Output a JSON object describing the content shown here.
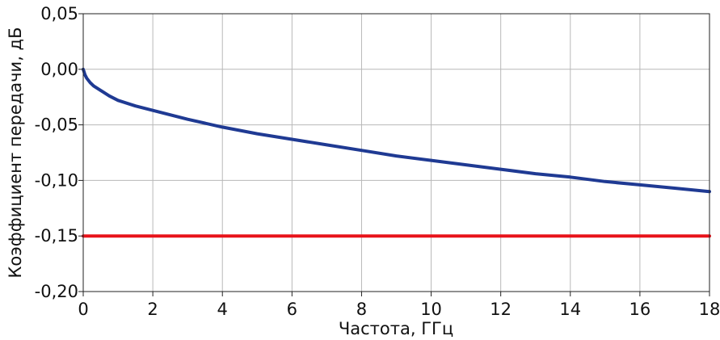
{
  "chart_data": {
    "type": "line",
    "title": "",
    "xlabel": "Частота, ГГц",
    "ylabel": "Коэффициент передачи, дБ",
    "xlim": [
      0,
      18
    ],
    "ylim": [
      -0.2,
      0.05
    ],
    "x_ticks": [
      0,
      2,
      4,
      6,
      8,
      10,
      12,
      14,
      16,
      18
    ],
    "x_tick_labels": [
      "0",
      "2",
      "4",
      "6",
      "8",
      "10",
      "12",
      "14",
      "16",
      "18"
    ],
    "y_ticks": [
      0.05,
      0.0,
      -0.05,
      -0.1,
      -0.15,
      -0.2
    ],
    "y_tick_labels": [
      "0,05",
      "0,00",
      "-0,05",
      "-0,10",
      "-0,15",
      "-0,20"
    ],
    "grid": true,
    "series": [
      {
        "color": "#1f3a93",
        "x": [
          0,
          0.05,
          0.1,
          0.2,
          0.3,
          0.5,
          0.75,
          1,
          1.5,
          2,
          3,
          4,
          5,
          6,
          7,
          8,
          9,
          10,
          11,
          12,
          13,
          14,
          15,
          16,
          17,
          18
        ],
        "y": [
          0.0,
          -0.005,
          -0.008,
          -0.012,
          -0.015,
          -0.019,
          -0.024,
          -0.028,
          -0.033,
          -0.037,
          -0.045,
          -0.052,
          -0.058,
          -0.063,
          -0.068,
          -0.073,
          -0.078,
          -0.082,
          -0.086,
          -0.09,
          -0.094,
          -0.097,
          -0.101,
          -0.104,
          -0.107,
          -0.11
        ]
      },
      {
        "color": "#e8131a",
        "x": [
          0,
          18
        ],
        "y": [
          -0.15,
          -0.15
        ]
      }
    ]
  }
}
